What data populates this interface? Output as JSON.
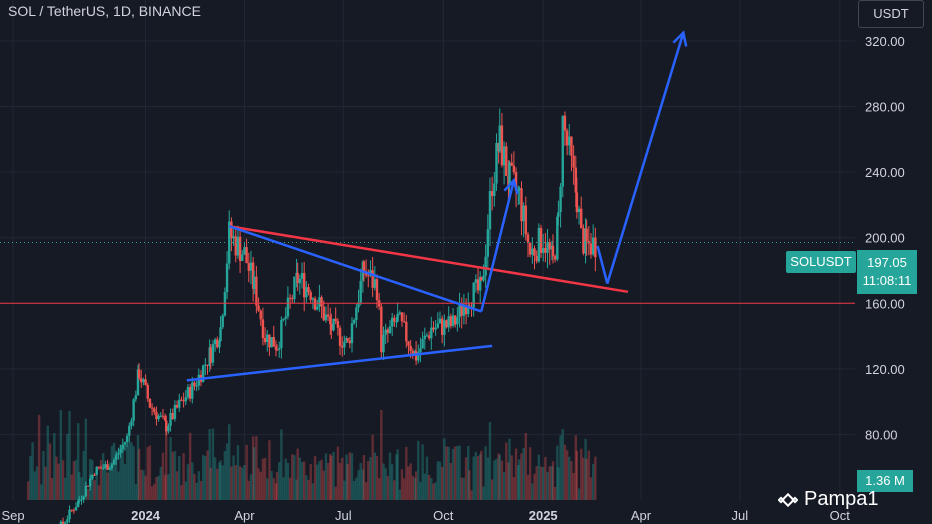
{
  "header": {
    "title": "SOL / TetherUS, 1D, BINANCE",
    "currency": "USDT"
  },
  "price_tag": {
    "symbol": "SOLUSDT",
    "price": "197.05",
    "countdown": "11:08:11"
  },
  "volume_tag": {
    "value": "1.36 M"
  },
  "watermark": {
    "text": "Pampa1"
  },
  "colors": {
    "background": "#161a25",
    "up": "#26a69a",
    "down": "#ef5350",
    "trendline_blue": "#2962ff",
    "trendline_red": "#f23645"
  },
  "chart_data": {
    "type": "candlestick",
    "symbol": "SOL / TetherUS",
    "interval": "1D",
    "exchange": "BINANCE",
    "x_ticks": [
      {
        "label": "Sep",
        "bold": false
      },
      {
        "label": "2024",
        "bold": true
      },
      {
        "label": "Apr",
        "bold": false
      },
      {
        "label": "Jul",
        "bold": false
      },
      {
        "label": "Oct",
        "bold": false
      },
      {
        "label": "2025",
        "bold": true
      },
      {
        "label": "Apr",
        "bold": false
      },
      {
        "label": "Jul",
        "bold": false
      },
      {
        "label": "Oct",
        "bold": false
      }
    ],
    "y_ticks": [
      80,
      120,
      160,
      200,
      240,
      280,
      320
    ],
    "y_tick_labels": [
      "80.00",
      "120.00",
      "160.00",
      "200.00",
      "240.00",
      "280.00",
      "320.00"
    ],
    "ylim": [
      40,
      345
    ],
    "xlim": [
      "2023-08-20",
      "2025-10-15"
    ],
    "last_price": 197.05,
    "horizontal_line": {
      "price": 160,
      "color": "#f23645"
    },
    "close_series": [
      [
        "2023-09-15",
        19
      ],
      [
        "2023-10-15",
        24
      ],
      [
        "2023-11-01",
        40
      ],
      [
        "2023-11-15",
        58
      ],
      [
        "2023-12-01",
        62
      ],
      [
        "2023-12-15",
        78
      ],
      [
        "2023-12-26",
        118
      ],
      [
        "2024-01-05",
        98
      ],
      [
        "2024-01-20",
        85
      ],
      [
        "2024-02-01",
        98
      ],
      [
        "2024-02-15",
        110
      ],
      [
        "2024-03-01",
        130
      ],
      [
        "2024-03-10",
        145
      ],
      [
        "2024-03-18",
        202
      ],
      [
        "2024-04-01",
        190
      ],
      [
        "2024-04-10",
        170
      ],
      [
        "2024-04-20",
        140
      ],
      [
        "2024-05-01",
        135
      ],
      [
        "2024-05-20",
        175
      ],
      [
        "2024-06-01",
        168
      ],
      [
        "2024-06-20",
        145
      ],
      [
        "2024-07-05",
        135
      ],
      [
        "2024-07-20",
        180
      ],
      [
        "2024-08-01",
        170
      ],
      [
        "2024-08-05",
        135
      ],
      [
        "2024-08-20",
        150
      ],
      [
        "2024-09-06",
        128
      ],
      [
        "2024-09-20",
        145
      ],
      [
        "2024-10-10",
        147
      ],
      [
        "2024-10-25",
        165
      ],
      [
        "2024-11-05",
        168
      ],
      [
        "2024-11-15",
        235
      ],
      [
        "2024-11-22",
        258
      ],
      [
        "2024-12-01",
        235
      ],
      [
        "2024-12-10",
        225
      ],
      [
        "2024-12-20",
        190
      ],
      [
        "2025-01-01",
        200
      ],
      [
        "2025-01-10",
        185
      ],
      [
        "2025-01-15",
        210
      ],
      [
        "2025-01-19",
        270
      ],
      [
        "2025-01-25",
        250
      ],
      [
        "2025-02-01",
        225
      ],
      [
        "2025-02-05",
        200
      ],
      [
        "2025-02-10",
        195
      ],
      [
        "2025-02-20",
        197.05
      ]
    ],
    "annotations": [
      {
        "type": "trendline",
        "color": "#f23645",
        "points": [
          [
            "2024-03-18",
            207
          ],
          [
            "2025-03-20",
            167
          ]
        ]
      },
      {
        "type": "trendline",
        "color": "#2962ff",
        "points": [
          [
            "2024-03-18",
            207
          ],
          [
            "2024-11-05",
            155
          ]
        ]
      },
      {
        "type": "trendline",
        "color": "#2962ff",
        "points": [
          [
            "2024-02-08",
            113
          ],
          [
            "2024-11-15",
            134
          ]
        ]
      },
      {
        "type": "arrow",
        "color": "#2962ff",
        "points": [
          [
            "2024-11-05",
            155
          ],
          [
            "2024-12-05",
            235
          ]
        ]
      },
      {
        "type": "arrow",
        "color": "#2962ff",
        "points": [
          [
            "2025-03-01",
            172
          ],
          [
            "2025-05-10",
            325
          ]
        ]
      },
      {
        "type": "polyline",
        "color": "#2962ff",
        "points": [
          [
            "2025-02-20",
            195
          ],
          [
            "2025-03-01",
            172
          ]
        ]
      }
    ]
  }
}
